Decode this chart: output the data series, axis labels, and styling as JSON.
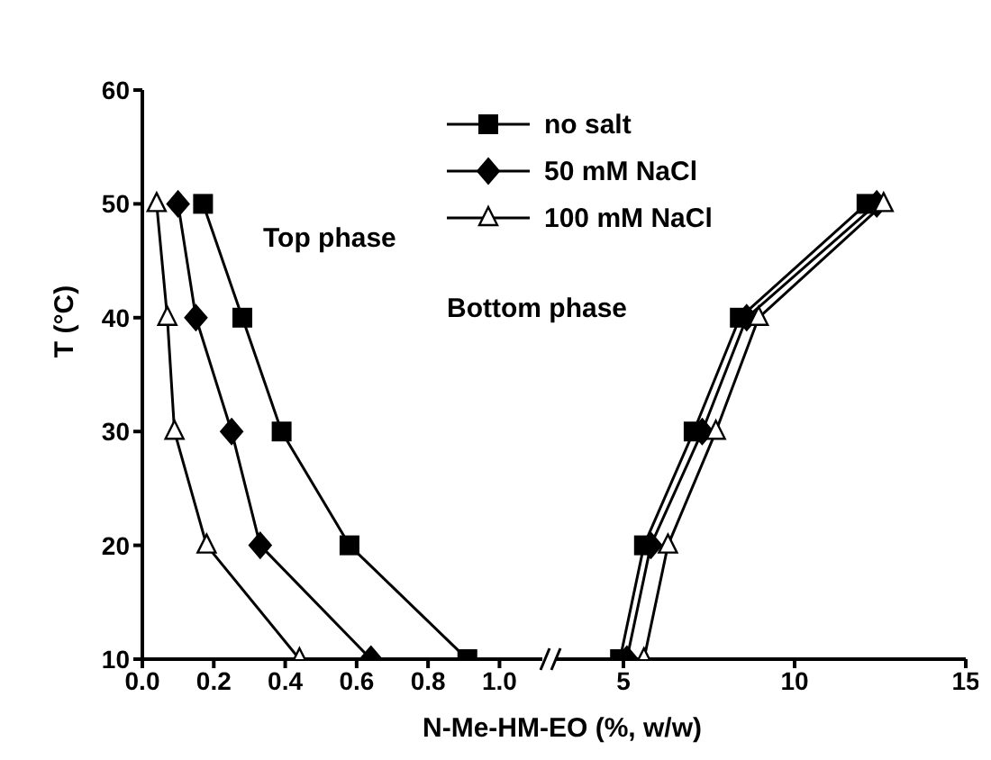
{
  "chart_data": [
    {
      "type": "line",
      "ylabel": "T (°C)",
      "xlabel": "N-Me-HM-EO (%, w/w)",
      "xlim": [
        0,
        1.12
      ],
      "xticks": [
        {
          "value": 0,
          "label": "0.0"
        },
        0.2,
        0.4,
        0.6,
        0.8,
        {
          "value": 1,
          "label": "1.0"
        }
      ],
      "ylim": [
        10,
        60
      ],
      "yticks": [
        10,
        20,
        30,
        40,
        50,
        60
      ],
      "legend": "top right",
      "annotations": [
        "Top phase"
      ],
      "series": [
        {
          "name": "no salt",
          "color": "#000000",
          "marker": "square",
          "x": [
            0.17,
            0.28,
            0.39,
            0.58,
            0.91
          ],
          "values": [
            50,
            40,
            30,
            20,
            10
          ]
        },
        {
          "name": "50 mM NaCl",
          "color": "#000000",
          "marker": "diamond",
          "x": [
            0.1,
            0.15,
            0.25,
            0.33,
            0.64
          ],
          "values": [
            50,
            40,
            30,
            20,
            10
          ]
        },
        {
          "name": "100 mM NaCl",
          "color": "#000000",
          "marker": "triangle",
          "x": [
            0.04,
            0.07,
            0.09,
            0.18,
            0.44
          ],
          "values": [
            50,
            40,
            30,
            20,
            10
          ]
        }
      ]
    },
    {
      "type": "line",
      "xlim": [
        3,
        15
      ],
      "xticks": [
        5,
        10,
        15
      ],
      "ylim": [
        10,
        60
      ],
      "yticks": [
        10,
        20,
        30,
        40,
        50,
        60
      ],
      "tick_labels": "x",
      "annotations": [
        "Bottom phase"
      ],
      "series": [
        {
          "color": "#000000",
          "marker": "square",
          "x": [
            4.9,
            5.6,
            7.05,
            8.4,
            12.1
          ],
          "values": [
            10,
            20,
            30,
            40,
            50
          ]
        },
        {
          "color": "#000000",
          "marker": "diamond",
          "x": [
            5.1,
            5.8,
            7.3,
            8.6,
            12.4
          ],
          "values": [
            10,
            20,
            30,
            40,
            50
          ]
        },
        {
          "color": "#000000",
          "marker": "triangle",
          "x": [
            5.6,
            6.3,
            7.7,
            8.95,
            12.6
          ],
          "values": [
            10,
            20,
            30,
            40,
            50
          ]
        }
      ]
    }
  ]
}
